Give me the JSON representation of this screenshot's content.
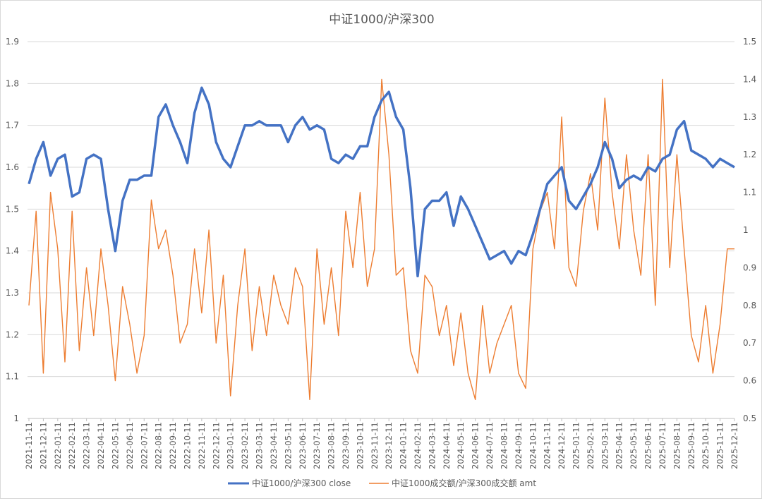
{
  "chart_data": {
    "type": "line",
    "title": "中证1000/沪深300",
    "xlabel": "",
    "ylabel": "",
    "grid": true,
    "legend_position": "bottom",
    "x_tick_labels": [
      "2021-11-11",
      "2021-12-11",
      "2022-01-11",
      "2022-02-11",
      "2022-03-11",
      "2022-04-11",
      "2022-05-11",
      "2022-06-11",
      "2022-07-11",
      "2022-08-11",
      "2022-09-11",
      "2022-10-11",
      "2022-11-11",
      "2022-12-11",
      "2023-01-11",
      "2023-02-11",
      "2023-03-11",
      "2023-04-11",
      "2023-05-11",
      "2023-06-11",
      "2023-07-11",
      "2023-08-11",
      "2023-09-11",
      "2023-10-11",
      "2023-11-11",
      "2023-12-11",
      "2024-01-11",
      "2024-02-11",
      "2024-03-11",
      "2024-04-11",
      "2024-05-11",
      "2024-06-11",
      "2024-07-11",
      "2024-08-11",
      "2024-09-11",
      "2024-10-11",
      "2024-11-11",
      "2024-12-11",
      "2025-01-11",
      "2025-02-11",
      "2025-03-11",
      "2025-04-11",
      "2025-05-11",
      "2025-06-11",
      "2025-07-11",
      "2025-08-11",
      "2025-09-11",
      "2025-10-11",
      "2025-11-11",
      "2025-12-11"
    ],
    "left_axis": {
      "range": [
        1,
        1.9
      ],
      "ticks": [
        "1",
        "1.1",
        "1.2",
        "1.3",
        "1.4",
        "1.5",
        "1.6",
        "1.7",
        "1.8",
        "1.9"
      ]
    },
    "right_axis": {
      "range": [
        0.5,
        1.5
      ],
      "ticks": [
        "0.5",
        "0.6",
        "0.7",
        "0.8",
        "0.9",
        "1",
        "1.1",
        "1.2",
        "1.3",
        "1.4",
        "1.5"
      ]
    },
    "series": [
      {
        "name": "中证1000/沪深300 close",
        "axis": "left",
        "color": "#4472c4",
        "values": [
          1.56,
          1.62,
          1.66,
          1.58,
          1.62,
          1.63,
          1.53,
          1.54,
          1.62,
          1.63,
          1.62,
          1.5,
          1.4,
          1.52,
          1.57,
          1.57,
          1.58,
          1.58,
          1.72,
          1.75,
          1.7,
          1.66,
          1.61,
          1.73,
          1.79,
          1.75,
          1.66,
          1.62,
          1.6,
          1.65,
          1.7,
          1.7,
          1.71,
          1.7,
          1.7,
          1.7,
          1.66,
          1.7,
          1.72,
          1.69,
          1.7,
          1.69,
          1.62,
          1.61,
          1.63,
          1.62,
          1.65,
          1.65,
          1.72,
          1.76,
          1.78,
          1.72,
          1.69,
          1.55,
          1.34,
          1.5,
          1.52,
          1.52,
          1.54,
          1.46,
          1.53,
          1.5,
          1.46,
          1.42,
          1.38,
          1.39,
          1.4,
          1.37,
          1.4,
          1.39,
          1.44,
          1.5,
          1.56,
          1.58,
          1.6,
          1.52,
          1.5,
          1.53,
          1.56,
          1.6,
          1.66,
          1.62,
          1.55,
          1.57,
          1.58,
          1.57,
          1.6,
          1.59,
          1.62,
          1.63,
          1.69,
          1.71,
          1.64,
          1.63,
          1.62,
          1.6,
          1.62,
          1.61,
          1.6
        ]
      },
      {
        "name": "中证1000成交额/沪深300成交额 amt",
        "axis": "right",
        "color": "#ed7d31",
        "values": [
          0.8,
          1.05,
          0.62,
          1.1,
          0.95,
          0.65,
          1.05,
          0.68,
          0.9,
          0.72,
          0.95,
          0.8,
          0.6,
          0.85,
          0.75,
          0.62,
          0.72,
          1.08,
          0.95,
          1.0,
          0.88,
          0.7,
          0.75,
          0.95,
          0.78,
          1.0,
          0.7,
          0.88,
          0.56,
          0.8,
          0.95,
          0.68,
          0.85,
          0.72,
          0.88,
          0.8,
          0.75,
          0.9,
          0.85,
          0.55,
          0.95,
          0.75,
          0.9,
          0.72,
          1.05,
          0.9,
          1.1,
          0.85,
          0.95,
          1.4,
          1.2,
          0.88,
          0.9,
          0.68,
          0.62,
          0.88,
          0.85,
          0.72,
          0.8,
          0.64,
          0.78,
          0.62,
          0.55,
          0.8,
          0.62,
          0.7,
          0.75,
          0.8,
          0.62,
          0.58,
          0.95,
          1.05,
          1.1,
          0.95,
          1.3,
          0.9,
          0.85,
          1.05,
          1.15,
          1.0,
          1.35,
          1.1,
          0.95,
          1.2,
          1.0,
          0.88,
          1.2,
          0.8,
          1.4,
          0.9,
          1.2,
          0.95,
          0.72,
          0.65,
          0.8,
          0.62,
          0.75,
          0.95,
          0.95
        ]
      }
    ]
  }
}
